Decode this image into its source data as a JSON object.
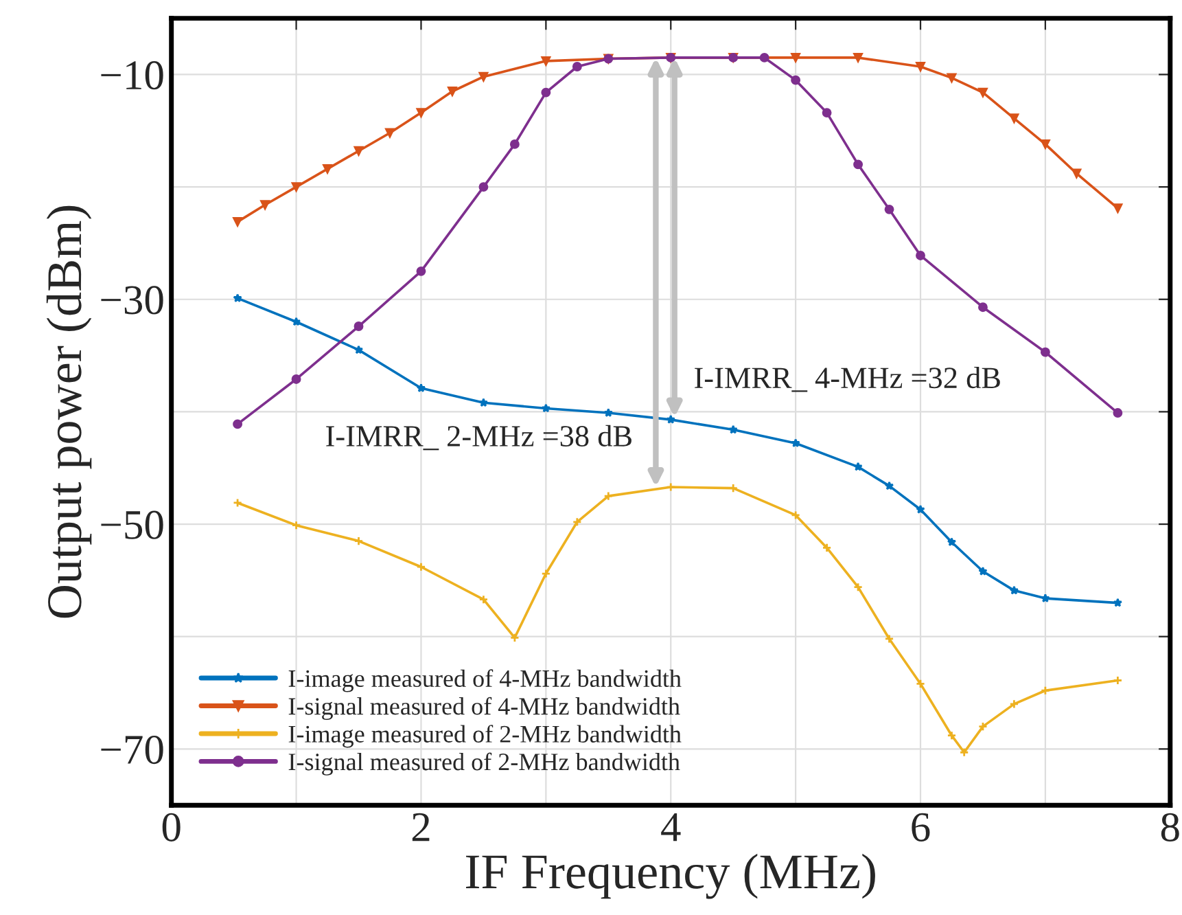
{
  "chart_data": {
    "type": "line",
    "xlabel": "IF Frequency (MHz)",
    "ylabel": "Output power (dBm)",
    "xlim": [
      0,
      8
    ],
    "ylim": [
      -75,
      -5
    ],
    "xticks": [
      0,
      {
        "value": 1,
        "label": null
      },
      2,
      {
        "value": 3,
        "label": null
      },
      4,
      {
        "value": 5,
        "label": null
      },
      6,
      {
        "value": 7,
        "label": null
      },
      8
    ],
    "yticks": [
      {
        "value": -70,
        "label": "−70"
      },
      {
        "value": -60,
        "label": null
      },
      {
        "value": -50,
        "label": "−50"
      },
      {
        "value": -40,
        "label": null
      },
      {
        "value": -30,
        "label": "−30"
      },
      {
        "value": -20,
        "label": null
      },
      {
        "value": -10,
        "label": "−10"
      }
    ],
    "grid": true,
    "legend": "bottom left",
    "series": [
      {
        "name": "I-image measured of 4-MHz bandwidth",
        "color": "#0072bd",
        "marker": "star",
        "x": [
          0.53,
          1.0,
          1.5,
          2.0,
          2.5,
          3.0,
          3.5,
          4.0,
          4.5,
          5.0,
          5.5,
          5.75,
          6.0,
          6.25,
          6.5,
          6.75,
          7.0,
          7.58
        ],
        "values": [
          -29.9,
          -32.0,
          -34.5,
          -37.9,
          -39.2,
          -39.7,
          -40.1,
          -40.7,
          -41.6,
          -42.8,
          -44.9,
          -46.6,
          -48.7,
          -51.6,
          -54.2,
          -55.9,
          -56.6,
          -57.0
        ]
      },
      {
        "name": "I-signal measured of 4-MHz bandwidth",
        "color": "#d95319",
        "marker": "triangle",
        "x": [
          0.53,
          0.75,
          1.0,
          1.25,
          1.5,
          1.75,
          2.0,
          2.25,
          2.5,
          3.0,
          3.5,
          4.0,
          4.5,
          5.0,
          5.5,
          6.0,
          6.25,
          6.5,
          6.75,
          7.0,
          7.25,
          7.58
        ],
        "values": [
          -23.1,
          -21.6,
          -20.0,
          -18.4,
          -16.8,
          -15.2,
          -13.4,
          -11.5,
          -10.2,
          -8.8,
          -8.6,
          -8.5,
          -8.5,
          -8.5,
          -8.5,
          -9.3,
          -10.3,
          -11.6,
          -13.9,
          -16.2,
          -18.8,
          -21.9
        ]
      },
      {
        "name": "I-image measured of 2-MHz bandwidth",
        "color": "#edb120",
        "marker": "cross",
        "x": [
          0.53,
          1.0,
          1.5,
          2.0,
          2.5,
          2.75,
          3.0,
          3.25,
          3.5,
          4.0,
          4.5,
          5.0,
          5.25,
          5.5,
          5.75,
          6.0,
          6.25,
          6.35,
          6.5,
          6.75,
          7.0,
          7.58
        ],
        "values": [
          -48.1,
          -50.1,
          -51.5,
          -53.8,
          -56.7,
          -60.1,
          -54.4,
          -49.8,
          -47.5,
          -46.7,
          -46.8,
          -49.2,
          -52.1,
          -55.6,
          -60.2,
          -64.2,
          -68.8,
          -70.3,
          -68.0,
          -66.0,
          -64.8,
          -63.9
        ]
      },
      {
        "name": "I-signal measured of 2-MHz bandwidth",
        "color": "#7e2f8e",
        "marker": "circle",
        "x": [
          0.53,
          1.0,
          1.5,
          2.0,
          2.5,
          2.75,
          3.0,
          3.25,
          3.5,
          4.0,
          4.5,
          4.75,
          5.0,
          5.25,
          5.5,
          5.75,
          6.0,
          6.5,
          7.0,
          7.58
        ],
        "values": [
          -41.1,
          -37.1,
          -32.4,
          -27.5,
          -20.0,
          -16.2,
          -11.6,
          -9.3,
          -8.6,
          -8.5,
          -8.5,
          -8.5,
          -10.5,
          -13.4,
          -18.0,
          -22.0,
          -26.1,
          -30.7,
          -34.7,
          -40.1
        ]
      }
    ],
    "annotations": [
      {
        "text": "I-IMRR_ 4-MHz =32 dB",
        "x": 4.03,
        "y": -40.5
      },
      {
        "text": "I-IMRR_ 2-MHz =38 dB",
        "x": 3.88,
        "y": -46.7
      }
    ]
  }
}
